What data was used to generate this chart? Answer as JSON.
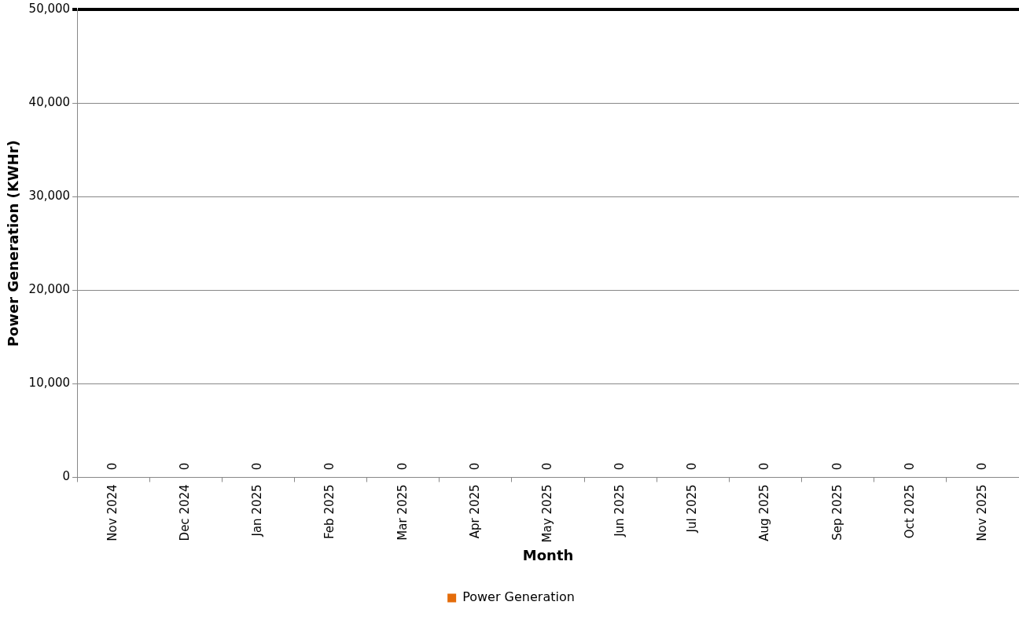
{
  "chart_data": {
    "type": "bar",
    "xlabel": "Month",
    "ylabel": "Power Generation (KWHr)",
    "categories": [
      "Nov 2024",
      "Dec 2024",
      "Jan 2025",
      "Feb 2025",
      "Mar 2025",
      "Apr 2025",
      "May 2025",
      "Jun 2025",
      "Jul 2025",
      "Aug 2025",
      "Sep 2025",
      "Oct 2025",
      "Nov 2025"
    ],
    "series": [
      {
        "name": "Power Generation",
        "color": "#e46c0a",
        "values": [
          0,
          0,
          0,
          0,
          0,
          0,
          0,
          0,
          0,
          0,
          0,
          0,
          0
        ]
      }
    ],
    "ylim": [
      0,
      50000
    ],
    "yticks": [
      0,
      {
        "value": 10000,
        "label": "10,000"
      },
      {
        "value": 20000,
        "label": "20,000"
      },
      {
        "value": 30000,
        "label": "30,000"
      },
      {
        "value": 40000,
        "label": "40,000"
      },
      {
        "value": 50000,
        "label": "50,000"
      }
    ],
    "grid": "y",
    "legend": "bottom",
    "data_labels": true
  }
}
